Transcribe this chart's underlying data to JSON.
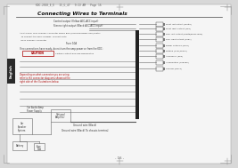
{
  "bg_color": "#d8d8d8",
  "page_bg": "#f5f5f5",
  "title": "Connecting Wires to Terminals",
  "tab_color": "#2a2a2a",
  "tab_text": "English",
  "header_text": "KDC-2020_E_E   15_G_47   9:13 AM   Page 16",
  "footer_text": "- 16 -",
  "line_color": "#444444",
  "diagram_line_color": "#555555",
  "dark_bar": "#222222",
  "label_color": "#333333",
  "red_color": "#aa0000",
  "gray_box": "#888888",
  "light_gray": "#bbbbbb"
}
